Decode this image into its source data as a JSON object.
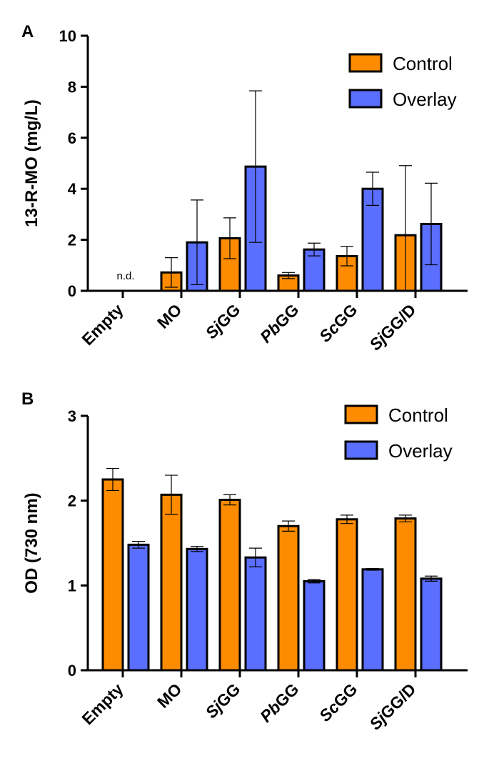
{
  "chart_data": [
    {
      "type": "bar",
      "panel": "A",
      "ylabel": "13-R-MO (mg/L)",
      "ylim": [
        0,
        10
      ],
      "yticks": [
        "0",
        "2",
        "4",
        "6",
        "8",
        "10"
      ],
      "categories": [
        "Empty",
        "MO",
        "SjGG",
        "PbGG",
        "ScGG",
        "SjGG/D"
      ],
      "italic_prefix": [
        "",
        "",
        "Sj",
        "Pb",
        "Sc",
        "Sj"
      ],
      "annotation": "n.d.",
      "series": [
        {
          "name": "Control",
          "color": "#ff8c00",
          "values": [
            null,
            0.72,
            2.06,
            0.6,
            1.36,
            2.18
          ],
          "errors": [
            null,
            0.58,
            0.8,
            0.12,
            0.38,
            2.73
          ]
        },
        {
          "name": "Overlay",
          "color": "#5a6eff",
          "values": [
            null,
            1.9,
            4.87,
            1.62,
            4.0,
            2.62
          ],
          "errors": [
            null,
            1.66,
            2.97,
            0.25,
            0.65,
            1.6
          ]
        }
      ],
      "legend": "top-right"
    },
    {
      "type": "bar",
      "panel": "B",
      "ylabel": "OD (730 nm)",
      "ylim": [
        0,
        3
      ],
      "yticks": [
        "0",
        "1",
        "2",
        "3"
      ],
      "categories": [
        "Empty",
        "MO",
        "SjGG",
        "PbGG",
        "ScGG",
        "SjGG/D"
      ],
      "italic_prefix": [
        "",
        "",
        "Sj",
        "Pb",
        "Sc",
        "Sj"
      ],
      "series": [
        {
          "name": "Control",
          "color": "#ff8c00",
          "values": [
            2.25,
            2.07,
            2.01,
            1.7,
            1.78,
            1.79
          ],
          "errors": [
            0.13,
            0.23,
            0.06,
            0.06,
            0.05,
            0.04
          ]
        },
        {
          "name": "Overlay",
          "color": "#5a6eff",
          "values": [
            1.48,
            1.43,
            1.33,
            1.05,
            1.19,
            1.08
          ],
          "errors": [
            0.04,
            0.03,
            0.11,
            0.02,
            0.01,
            0.03
          ]
        }
      ],
      "legend": "top-right"
    }
  ]
}
